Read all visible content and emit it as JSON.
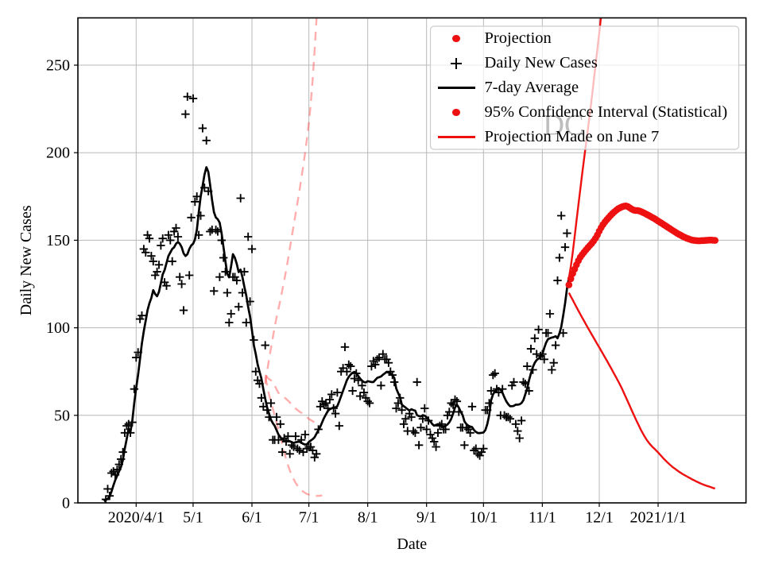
{
  "watermark": "DC",
  "axes": {
    "x_label": "Date",
    "y_label": "Daily New Cases",
    "date_epoch": "2020-01-01",
    "x_range_days": [
      60.3,
      412.3
    ],
    "y_range": [
      0,
      277.0
    ],
    "x_ticks": [
      {
        "day": 91,
        "label": "2020/4/1"
      },
      {
        "day": 121,
        "label": "5/1"
      },
      {
        "day": 152,
        "label": "6/1"
      },
      {
        "day": 182,
        "label": "7/1"
      },
      {
        "day": 213,
        "label": "8/1"
      },
      {
        "day": 244,
        "label": "9/1"
      },
      {
        "day": 274,
        "label": "10/1"
      },
      {
        "day": 305,
        "label": "11/1"
      },
      {
        "day": 335,
        "label": "12/1"
      },
      {
        "day": 366,
        "label": "2021/1/1"
      }
    ],
    "y_ticks": [
      {
        "value": 0,
        "label": "0"
      },
      {
        "value": 50,
        "label": "50"
      },
      {
        "value": 100,
        "label": "100"
      },
      {
        "value": 150,
        "label": "150"
      },
      {
        "value": 200,
        "label": "200"
      },
      {
        "value": 250,
        "label": "250"
      }
    ]
  },
  "legend": {
    "items": [
      {
        "label": "Projection",
        "marker": "dot",
        "color": "#ee1111"
      },
      {
        "label": "Daily New Cases",
        "marker": "plus",
        "color": "#000000"
      },
      {
        "label": "7-day Average",
        "marker": "line",
        "color": "#000000"
      },
      {
        "label": "95% Confidence Interval (Statistical)",
        "marker": "dot",
        "color": "#ee1111"
      },
      {
        "label": "Projection Made on June 7",
        "marker": "line",
        "color": "#ee1111"
      }
    ]
  },
  "colors": {
    "red": "#ee1111",
    "faded_red": "rgba(255,60,60,0.42)",
    "black": "#000000",
    "grid": "#b8b8b8",
    "watermark": "#bdbdbd",
    "legend_border": "#cccccc",
    "legend_bg": "rgba(255,255,255,0.72)"
  },
  "chart_data": {
    "type": "line+scatter",
    "x_unit": "date",
    "series": [
      {
        "name": "Daily New Cases",
        "style": "plus-scatter",
        "color": "#000000",
        "start_date": "2020-03-16",
        "start_day": 75,
        "values": [
          2,
          8,
          4,
          17,
          18,
          16,
          19,
          22,
          25,
          29,
          40,
          44,
          45,
          40,
          46,
          65,
          83,
          86,
          105,
          107,
          145,
          143,
          153,
          151,
          141,
          138,
          130,
          132,
          136,
          147,
          151,
          126,
          124,
          153,
          150,
          138,
          155,
          157,
          152,
          129,
          125,
          110,
          222,
          232,
          130,
          163,
          231,
          172,
          175,
          153,
          164,
          214,
          180,
          207,
          178,
          155,
          156,
          121,
          156,
          155,
          129,
          150,
          140,
          132,
          120,
          103,
          108,
          129,
          129,
          127,
          112,
          174,
          120,
          132,
          103,
          152,
          115,
          145,
          93,
          75,
          70,
          68,
          60,
          55,
          90,
          53,
          49,
          57,
          36,
          36,
          49,
          36,
          45,
          29,
          37,
          35,
          38,
          28,
          33,
          32,
          38,
          31,
          30,
          36,
          29,
          39,
          31,
          32,
          32,
          30,
          26,
          28,
          42,
          55,
          58,
          56,
          57,
          54,
          59,
          62,
          54,
          51,
          63,
          44,
          75,
          77,
          89,
          75,
          79,
          78,
          64,
          71,
          74,
          70,
          61,
          67,
          63,
          60,
          58,
          57,
          78,
          81,
          79,
          82,
          83,
          67,
          85,
          82,
          82,
          80,
          75,
          73,
          69,
          54,
          57,
          60,
          53,
          45,
          48,
          41,
          51,
          49,
          41,
          40,
          69,
          33,
          43,
          48,
          54,
          42,
          47,
          39,
          37,
          35,
          32,
          40,
          44,
          45,
          42,
          42,
          50,
          52,
          57,
          56,
          59,
          58,
          52,
          43,
          43,
          33,
          43,
          42,
          40,
          55,
          30,
          31,
          28,
          27,
          29,
          31,
          53,
          53,
          57,
          64,
          73,
          74,
          65,
          63,
          50,
          65,
          50,
          49,
          49,
          48,
          67,
          69,
          45,
          41,
          37,
          47,
          69,
          68,
          78,
          64,
          88,
          76,
          94,
          85,
          99,
          84,
          85,
          82,
          97,
          97,
          108,
          76,
          80,
          90,
          127,
          140,
          164,
          97,
          146,
          154
        ]
      },
      {
        "name": "7-day Average",
        "style": "solid-line",
        "color": "#000000",
        "start_date": "2020-03-15",
        "start_day": 74,
        "values": [
          1.0,
          1.6,
          2.4,
          3.6,
          6.5,
          10.0,
          13.0,
          15.5,
          18.0,
          20.5,
          24.5,
          31.0,
          36.5,
          42.4,
          40.5,
          47.0,
          57.0,
          65.5,
          73.0,
          82.0,
          91.0,
          98.0,
          104.0,
          110.0,
          114.0,
          117.0,
          121.5,
          119.3,
          118.0,
          120.5,
          125.5,
          130.5,
          133.0,
          137.0,
          141.0,
          143.0,
          145.0,
          146.0,
          148.0,
          149.0,
          148.0,
          146.0,
          142.5,
          141.0,
          142.0,
          145.0,
          147.0,
          148.0,
          150.5,
          156.0,
          166.0,
          175.0,
          181.0,
          187.5,
          191.7,
          189.0,
          181.5,
          173.0,
          166.0,
          163.0,
          162.0,
          160.0,
          154.0,
          146.0,
          138.0,
          131.0,
          128.8,
          135.0,
          142.0,
          140.0,
          136.5,
          131.8,
          133.2,
          129.0,
          123.5,
          118.5,
          112.0,
          106.5,
          98.6,
          90.0,
          85.0,
          79.0,
          75.0,
          71.0,
          65.0,
          59.5,
          54.5,
          51.0,
          47.5,
          45.5,
          44.0,
          41.5,
          39.0,
          37.5,
          36.3,
          35.7,
          35.1,
          35.5,
          35.2,
          34.6,
          34.2,
          34.6,
          34.8,
          35.0,
          34.4,
          33.7,
          33.3,
          33.5,
          34.8,
          35.6,
          36.4,
          37.5,
          39.5,
          41.5,
          43.5,
          46.0,
          48.5,
          50.5,
          52.5,
          53.5,
          54.0,
          54.5,
          54.6,
          55.2,
          58.0,
          61.0,
          64.0,
          67.0,
          70.0,
          72.0,
          73.3,
          74.3,
          74.8,
          74.0,
          72.5,
          71.0,
          69.8,
          69.0,
          68.8,
          69.5,
          69.3,
          69.0,
          69.0,
          70.2,
          71.4,
          71.8,
          72.2,
          73.2,
          74.0,
          74.8,
          74.3,
          73.9,
          72.8,
          71.4,
          65.4,
          62.8,
          60.3,
          56.1,
          55.2,
          54.4,
          53.5,
          52.7,
          53.5,
          53.0,
          52.7,
          50.1,
          49.6,
          49.3,
          50.1,
          49.8,
          48.9,
          47.5,
          46.5,
          45.0,
          44.1,
          44.5,
          45.0,
          44.3,
          43.8,
          43.3,
          44.1,
          44.8,
          46.0,
          48.0,
          51.0,
          54.5,
          56.1,
          54.4,
          52.0,
          50.1,
          46.5,
          45.0,
          44.1,
          43.6,
          43.3,
          41.6,
          40.5,
          39.9,
          39.9,
          40.0,
          40.2,
          41.6,
          45.0,
          50.1,
          58.6,
          62.0,
          63.7,
          64.6,
          65.6,
          64.6,
          62.9,
          60.3,
          58.0,
          56.4,
          55.2,
          55.2,
          55.4,
          56.1,
          56.1,
          56.3,
          57.0,
          58.6,
          62.0,
          65.4,
          70.0,
          74.0,
          77.5,
          80.0,
          81.6,
          82.4,
          83.5,
          85.0,
          88.4,
          91.5,
          93.5,
          94.0,
          94.4,
          94.7,
          95.2,
          94.0,
          96.8,
          100.6,
          107.0,
          114.0,
          122.4,
          128.5
        ]
      },
      {
        "name": "Projection",
        "style": "dot-scatter",
        "color": "#ee1111",
        "start_date": "2020-11-15",
        "start_day": 319,
        "values": [
          124.5,
          128.0,
          131.0,
          133.5,
          136.0,
          138.3,
          140.3,
          141.8,
          143.2,
          144.5,
          145.8,
          147.0,
          148.2,
          149.5,
          151.1,
          153.0,
          155.2,
          157.2,
          159.0,
          160.5,
          161.8,
          163.0,
          164.2,
          165.3,
          166.3,
          167.2,
          168.0,
          168.6,
          169.1,
          169.4,
          169.6,
          169.3,
          168.6,
          167.9,
          167.3,
          167.0,
          167.0,
          166.8,
          166.4,
          165.9,
          165.4,
          164.8,
          164.2,
          163.6,
          163.0,
          162.4,
          161.7,
          161.0,
          160.3,
          159.6,
          158.9,
          158.2,
          157.5,
          156.8,
          156.1,
          155.4,
          154.7,
          154.0,
          153.4,
          152.8,
          152.2,
          151.7,
          151.2,
          150.8,
          150.4,
          150.1,
          149.9,
          149.8,
          149.7,
          149.7,
          149.8,
          149.8,
          149.9,
          150.0,
          150.1,
          150.1,
          150.0,
          149.9
        ]
      },
      {
        "name": "95% CI Upper",
        "style": "solid-line",
        "color": "#ee1111",
        "start_date": "2020-11-15",
        "start_day": 319,
        "values": [
          128.4,
          135.0,
          143.0,
          152.0,
          161.0,
          170.0,
          179.0,
          188.0,
          196.5,
          205.0,
          213.5,
          222.0,
          231.0,
          240.0,
          249.5,
          259.0,
          268.5,
          278.5,
          289.0
        ]
      },
      {
        "name": "95% CI Lower",
        "style": "solid-line",
        "color": "#ee1111",
        "start_date": "2020-11-15",
        "start_day": 319,
        "values": [
          120.0,
          117.9,
          115.9,
          113.8,
          111.8,
          109.8,
          107.8,
          105.8,
          103.9,
          101.9,
          100.0,
          98.1,
          96.2,
          94.4,
          92.5,
          90.6,
          88.8,
          86.9,
          85.0,
          83.1,
          81.2,
          79.3,
          77.4,
          75.4,
          73.4,
          71.4,
          69.4,
          67.3,
          65.1,
          62.8,
          60.4,
          58.0,
          55.6,
          53.1,
          50.7,
          48.3,
          46.0,
          43.8,
          41.6,
          39.6,
          37.7,
          36.0,
          34.5,
          33.2,
          32.0,
          31.0,
          29.9,
          28.8,
          27.6,
          26.4,
          25.2,
          24.1,
          23.0,
          22.0,
          21.1,
          20.2,
          19.4,
          18.6,
          17.8,
          17.1,
          16.4,
          15.8,
          15.2,
          14.6,
          14.0,
          13.4,
          12.9,
          12.3,
          11.8,
          11.3,
          10.8,
          10.4,
          10.0,
          9.6,
          9.3,
          8.9,
          8.5,
          8.2
        ]
      },
      {
        "name": "June 7 Projection Upper CI",
        "style": "dashed-line",
        "color": "faded",
        "start_date": "2020-06-08",
        "start_day": 159,
        "values": [
          68.0,
          75.2,
          82.0,
          88.4,
          94.5,
          100.4,
          106.0,
          111.0,
          116.0,
          121.4,
          127.0,
          132.9,
          139.0,
          145.4,
          152.0,
          158.5,
          165.0,
          171.4,
          178.0,
          185.1,
          192.5,
          200.0,
          208.0,
          217.0,
          228.0,
          242.0,
          258.0,
          276.0,
          295.0
        ]
      },
      {
        "name": "June 7 Projection Median",
        "style": "dashed-line",
        "color": "faded",
        "start_date": "2020-06-08",
        "start_day": 159,
        "values": [
          73.0,
          71.8,
          70.7,
          70.0,
          69.2,
          67.0,
          64.8,
          62.8,
          61.8,
          61.0,
          60.2,
          59.4,
          58.4,
          57.3,
          56.1,
          55.0,
          53.9,
          53.0,
          52.2,
          51.5,
          50.7,
          49.8,
          48.9,
          48.0,
          47.3,
          46.7,
          45.9,
          45.1,
          44.4
        ]
      },
      {
        "name": "June 7 Projection Lower CI",
        "style": "dashed-line",
        "color": "faded",
        "start_date": "2020-06-08",
        "start_day": 159,
        "values": [
          72.0,
          67.0,
          62.0,
          57.8,
          53.8,
          49.8,
          45.8,
          41.9,
          38.0,
          33.5,
          29.0,
          25.0,
          21.5,
          18.5,
          15.8,
          13.5,
          11.5,
          9.9,
          8.5,
          7.4,
          6.4,
          5.7,
          5.1,
          4.7,
          4.4,
          4.2,
          4.0,
          4.0,
          4.0,
          4.1,
          4.3
        ]
      }
    ]
  }
}
